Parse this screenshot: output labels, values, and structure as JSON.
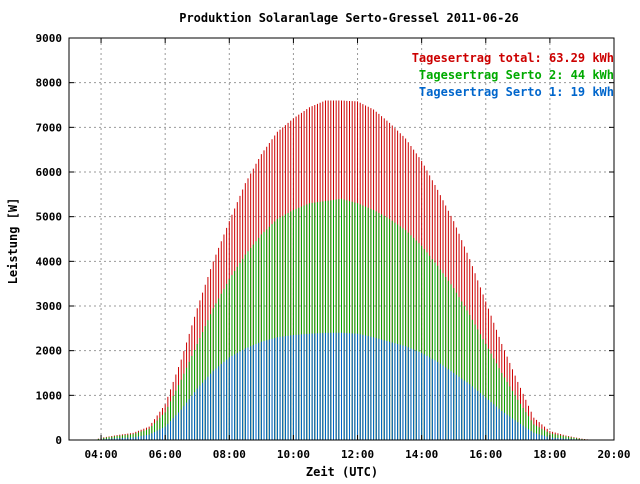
{
  "chart_data": {
    "type": "bar",
    "title": "Produktion Solaranlage Serto-Gressel 2011-06-26",
    "xlabel": "Zeit (UTC)",
    "ylabel": "Leistung [W]",
    "xlim": [
      "03:00",
      "20:00"
    ],
    "ylim": [
      0,
      9000
    ],
    "grid": true,
    "legend_position": "top-right",
    "y_ticks": [
      "0",
      "1000",
      "2000",
      "3000",
      "4000",
      "5000",
      "6000",
      "7000",
      "8000",
      "9000"
    ],
    "x_ticks": [
      "04:00",
      "06:00",
      "08:00",
      "10:00",
      "12:00",
      "14:00",
      "16:00",
      "18:00",
      "20:00"
    ],
    "x": [
      "03:50",
      "04:00",
      "04:30",
      "05:00",
      "05:30",
      "06:00",
      "06:30",
      "07:00",
      "07:30",
      "08:00",
      "08:30",
      "09:00",
      "09:30",
      "10:00",
      "10:30",
      "11:00",
      "11:30",
      "12:00",
      "12:30",
      "13:00",
      "13:30",
      "14:00",
      "14:30",
      "15:00",
      "15:30",
      "16:00",
      "16:30",
      "17:00",
      "17:30",
      "18:00",
      "18:30",
      "19:00",
      "19:20"
    ],
    "series": [
      {
        "name": "Tagesertrag total: 63.29 kWh",
        "color": "#cc0000",
        "values": [
          10,
          50,
          110,
          160,
          300,
          800,
          1800,
          2950,
          4000,
          4900,
          5750,
          6400,
          6900,
          7200,
          7450,
          7600,
          7600,
          7580,
          7400,
          7100,
          6750,
          6250,
          5600,
          4900,
          4050,
          3100,
          2150,
          1300,
          500,
          200,
          100,
          30,
          0
        ]
      },
      {
        "name": "Tagesertrag Serto 2: 44 kWh",
        "color": "#00aa00",
        "values": [
          8,
          40,
          90,
          130,
          250,
          620,
          1350,
          2150,
          2950,
          3600,
          4150,
          4600,
          4950,
          5150,
          5300,
          5350,
          5400,
          5300,
          5150,
          4950,
          4700,
          4350,
          3900,
          3400,
          2800,
          2150,
          1500,
          900,
          350,
          150,
          80,
          20,
          0
        ]
      },
      {
        "name": "Tagesertrag Serto 1: 19 kWh",
        "color": "#0066cc",
        "values": [
          3,
          15,
          40,
          60,
          120,
          300,
          680,
          1150,
          1550,
          1850,
          2050,
          2200,
          2300,
          2350,
          2380,
          2400,
          2400,
          2380,
          2300,
          2200,
          2100,
          1950,
          1750,
          1500,
          1250,
          950,
          650,
          400,
          160,
          60,
          30,
          10,
          0
        ]
      }
    ]
  }
}
